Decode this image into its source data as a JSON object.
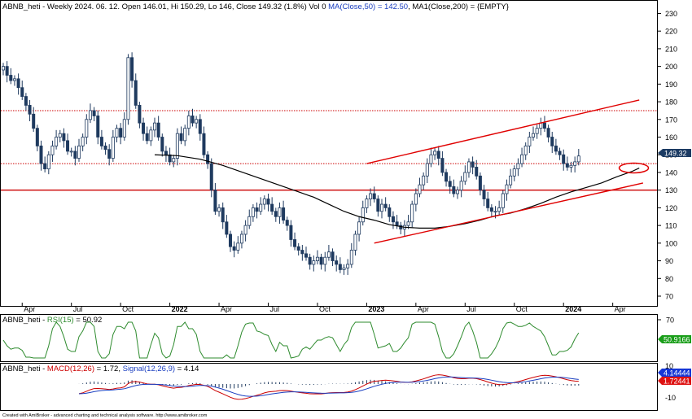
{
  "colors": {
    "frame": "#000000",
    "bull": "#ffffff",
    "bear": "#1f3a5f",
    "ma": "#000000",
    "levels": "#cc0000",
    "channel": "#e00000",
    "rsi": "#2e8b2e",
    "macd": "#cc0000",
    "signal": "#1a3ec0",
    "hist": "#1f3a5f",
    "tag": "#1c3b63",
    "rsiTag": "#1a9e1a",
    "sigTag": "#1536d6",
    "macdTag": "#dd1111"
  },
  "header": {
    "title": "ABNB_heti - Weekly 2024. 06. 12. Open 146.01, Hi 150.29, Lo 146, Close 149.32 (1.8%) Vol 0 ",
    "ma50": "MA(Close,50) = 142.50",
    "ma200": ", MA1(Close,200) = {EMPTY}"
  },
  "last_price_tag": "149.32",
  "rsi_panel": {
    "title": "ABNB_heti - ",
    "label": "RSI(15)",
    "value": " = 50.92",
    "tag": "50.9166",
    "tick_70": "70"
  },
  "macd_panel": {
    "title": "ABNB_heti - ",
    "macd_label": "MACD(12,26)",
    "macd_value": " = 1.72, ",
    "signal_label": "Signal(12,26,9)",
    "signal_value": " = 4.14",
    "signal_tag": "4.14444",
    "macd_tag": "1.72441",
    "tick_10": "10",
    "tick_m10": "-10"
  },
  "footer": "Created with AmiBroker - advanced charting and technical analysis software. http://www.amibroker.com",
  "chart_data": [
    {
      "type": "candlestick",
      "title": "ABNB_heti - Weekly 2024. 06. 12. Open 146.01, Hi 150.29, Lo 146, Close 149.32 (1.8%) Vol 0 MA(Close,50) = 142.50, MA1(Close,200) = {EMPTY}",
      "ylim": [
        70,
        230
      ],
      "y_ticks": [
        70,
        80,
        90,
        100,
        110,
        120,
        130,
        140,
        150,
        160,
        170,
        180,
        190,
        200,
        210,
        220,
        230
      ],
      "x_tick_labels": [
        "Apr",
        "Jul",
        "Oct",
        "2022",
        "Apr",
        "Jul",
        "Oct",
        "2023",
        "Apr",
        "Jul",
        "Oct",
        "2024",
        "Apr"
      ],
      "x_tick_weeks": [
        5,
        18,
        31,
        44,
        57,
        70,
        83,
        96,
        109,
        122,
        135,
        148,
        161
      ],
      "bold_labels": [
        "2022",
        "2023",
        "2024"
      ],
      "series": [
        {
          "name": "MA(Close,50)",
          "points": [
            [
              40,
              150
            ],
            [
              46,
              149.5
            ],
            [
              52,
              147.5
            ],
            [
              58,
              144
            ],
            [
              62,
              141
            ],
            [
              66,
              138
            ],
            [
              70,
              135
            ],
            [
              74,
              132
            ],
            [
              78,
              129
            ],
            [
              82,
              126
            ],
            [
              86,
              122
            ],
            [
              90,
              118
            ],
            [
              94,
              115
            ],
            [
              98,
              113
            ],
            [
              102,
              110.5
            ],
            [
              106,
              109
            ],
            [
              110,
              108.5
            ],
            [
              114,
              108.5
            ],
            [
              118,
              109.5
            ],
            [
              122,
              111
            ],
            [
              126,
              113
            ],
            [
              130,
              115.5
            ],
            [
              134,
              117
            ],
            [
              138,
              119.5
            ],
            [
              142,
              122.5
            ],
            [
              146,
              126
            ],
            [
              150,
              129
            ],
            [
              154,
              131.5
            ],
            [
              158,
              134
            ],
            [
              162,
              137.5
            ],
            [
              166,
              140.5
            ],
            [
              168,
              142.5
            ]
          ]
        }
      ],
      "weekly_closes": [
        200,
        195,
        192,
        193,
        188,
        183,
        178,
        173,
        165,
        155,
        145,
        142,
        150,
        155,
        160,
        162,
        158,
        152,
        152,
        148,
        155,
        160,
        170,
        175,
        172,
        160,
        155,
        153,
        148,
        160,
        165,
        160,
        170,
        205,
        192,
        178,
        168,
        162,
        158,
        164,
        168,
        160,
        152,
        150,
        146,
        148,
        162,
        158,
        165,
        172,
        168,
        170,
        162,
        150,
        145,
        130,
        118,
        120,
        112,
        105,
        98,
        96,
        100,
        105,
        110,
        115,
        120,
        118,
        122,
        125,
        122,
        118,
        115,
        120,
        113,
        110,
        102,
        98,
        96,
        94,
        92,
        88,
        90,
        92,
        88,
        92,
        95,
        90,
        88,
        85,
        86,
        88,
        96,
        105,
        112,
        120,
        125,
        128,
        125,
        118,
        122,
        120,
        115,
        112,
        110,
        108,
        110,
        112,
        122,
        128,
        133,
        138,
        145,
        150,
        152,
        148,
        140,
        135,
        132,
        128,
        130,
        135,
        140,
        146,
        143,
        138,
        130,
        125,
        120,
        118,
        118,
        120,
        128,
        133,
        138,
        142,
        145,
        150,
        155,
        160,
        162,
        165,
        168,
        165,
        160,
        155,
        152,
        150,
        145,
        143,
        144,
        146,
        149.32
      ],
      "horizontal_levels": [
        175,
        145,
        130
      ],
      "channel": {
        "upper": [
          [
            96,
            145
          ],
          [
            168,
            181
          ]
        ],
        "lower": [
          [
            98,
            100
          ],
          [
            169,
            134
          ]
        ]
      },
      "highlight": {
        "week": 167,
        "price": 142.5,
        "shape": "ellipse"
      }
    },
    {
      "type": "line",
      "title": "ABNB_heti - RSI(15) = 50.92",
      "series": [
        {
          "name": "RSI(15)",
          "last_value": 50.92
        }
      ],
      "y_ticks": [
        70
      ]
    },
    {
      "type": "line",
      "title": "ABNB_heti - MACD(12,26) = 1.72, Signal(12,26,9) = 4.14",
      "series": [
        {
          "name": "MACD(12,26)",
          "last_value": 1.72
        },
        {
          "name": "Signal(12,26,9)",
          "last_value": 4.14
        }
      ],
      "y_ticks": [
        10,
        -10
      ]
    }
  ]
}
